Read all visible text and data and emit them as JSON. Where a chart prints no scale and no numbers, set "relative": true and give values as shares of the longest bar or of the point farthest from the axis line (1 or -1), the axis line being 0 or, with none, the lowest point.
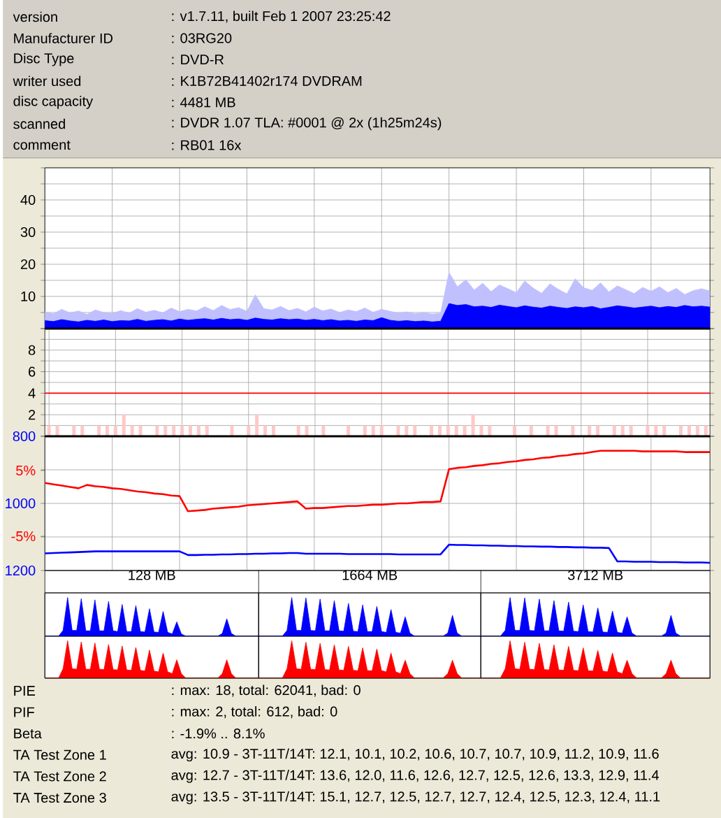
{
  "chart_data": [
    {
      "type": "area",
      "categories": [
        null,
        null,
        null,
        null,
        null,
        null,
        null,
        null,
        null,
        null,
        null,
        null,
        null,
        null,
        null,
        null,
        null,
        null,
        null,
        null,
        null,
        null,
        null,
        null,
        null,
        null,
        null,
        null,
        null,
        null,
        null,
        null,
        null,
        null,
        null,
        null,
        null,
        null,
        null,
        null,
        null,
        null,
        null,
        null,
        null,
        null,
        null,
        null,
        null,
        null,
        null,
        null,
        null,
        null,
        null,
        null,
        null,
        null,
        null,
        null,
        null,
        null,
        null,
        null,
        null,
        null,
        null,
        null,
        null,
        null,
        null,
        null,
        null,
        null,
        null,
        null,
        null,
        null,
        null,
        null
      ],
      "series": [
        {
          "color": "#c0c0ff",
          "values": [
            5.2,
            4.6,
            6.0,
            4.9,
            5.5,
            4.4,
            5.8,
            5.0,
            4.7,
            5.6,
            4.8,
            6.2,
            5.1,
            5.7,
            4.9,
            6.4,
            5.3,
            6.0,
            5.5,
            6.8,
            5.6,
            7.2,
            5.9,
            6.5,
            5.4,
            10.5,
            6.2,
            5.8,
            6.9,
            5.6,
            6.3,
            5.2,
            6.7,
            5.5,
            6.1,
            5.0,
            5.8,
            5.3,
            6.4,
            5.1,
            6.0,
            5.4,
            4.8,
            5.2,
            4.6,
            5.0,
            4.5,
            4.8,
            17.5,
            13.0,
            15.2,
            12.0,
            14.1,
            11.5,
            13.6,
            12.4,
            11.2,
            14.8,
            12.6,
            11.0,
            13.9,
            12.2,
            10.8,
            15.5,
            12.7,
            11.9,
            14.2,
            11.4,
            13.3,
            12.1,
            10.9,
            12.8,
            11.6,
            13.0,
            11.2,
            12.5,
            10.6,
            11.8,
            12.4,
            11.7
          ]
        },
        {
          "color": "#0000ff",
          "values": [
            2.5,
            2.2,
            2.8,
            2.4,
            2.1,
            2.6,
            2.3,
            2.7,
            2.2,
            2.5,
            2.4,
            2.9,
            2.3,
            2.6,
            2.8,
            2.4,
            3.0,
            2.6,
            2.9,
            3.1,
            2.7,
            3.2,
            2.8,
            3.0,
            2.6,
            3.3,
            2.9,
            2.7,
            3.1,
            2.8,
            3.0,
            2.6,
            2.9,
            2.5,
            2.8,
            2.4,
            2.6,
            2.3,
            2.7,
            2.5,
            3.4,
            2.6,
            2.3,
            2.5,
            2.2,
            2.4,
            2.1,
            2.3,
            7.8,
            7.2,
            7.5,
            6.8,
            7.0,
            6.6,
            7.3,
            6.9,
            6.5,
            7.1,
            6.7,
            6.4,
            7.0,
            6.6,
            6.3,
            6.8,
            6.5,
            6.9,
            6.2,
            6.6,
            7.1,
            6.8,
            6.4,
            6.7,
            7.0,
            6.5,
            6.9,
            6.6,
            7.2,
            6.8,
            7.0,
            6.7
          ]
        }
      ],
      "ylim": [
        0,
        50
      ],
      "yticks": [
        {
          "value": 0,
          "label": null
        },
        {
          "value": 5,
          "label": null
        },
        10,
        {
          "value": 15,
          "label": null
        },
        20,
        {
          "value": 25,
          "label": null
        },
        30,
        {
          "value": 35,
          "label": null
        },
        40,
        {
          "value": 45,
          "label": null
        },
        {
          "value": 50,
          "label": null
        }
      ],
      "grid": true,
      "tick_labels": "y",
      "annotations": [
        "version",
        ": v1.7.11, built Feb  1 2007 23:25:42",
        "Manufacturer ID",
        ": 03RG20",
        "Disc Type",
        ": DVD-R",
        "writer used",
        ": K1B72B41402r174 DVDRAM",
        "disc capacity",
        ": 4481 MB",
        "scanned",
        ": DVDR 1.07 TLA: #0001 @ 2x (1h25m24s)",
        "comment",
        ": RB01 16x"
      ]
    },
    {
      "type": "bar",
      "categories": [
        null,
        null,
        null,
        null,
        null,
        null,
        null,
        null,
        null,
        null,
        null,
        null,
        null,
        null,
        null,
        null,
        null,
        null,
        null,
        null,
        null,
        null,
        null,
        null,
        null,
        null,
        null,
        null,
        null,
        null,
        null,
        null,
        null,
        null,
        null,
        null,
        null,
        null,
        null,
        null,
        null,
        null,
        null,
        null,
        null,
        null,
        null,
        null,
        null,
        null,
        null,
        null,
        null,
        null,
        null,
        null,
        null,
        null,
        null,
        null,
        null,
        null,
        null,
        null,
        null,
        null,
        null,
        null,
        null,
        null,
        null,
        null,
        null,
        null,
        null,
        null,
        null,
        null,
        null,
        null
      ],
      "values": [
        1,
        1,
        0,
        1,
        1,
        0,
        1,
        1,
        1,
        2,
        1,
        1,
        0,
        1,
        1,
        1,
        1,
        1,
        1,
        1,
        0,
        0,
        1,
        0,
        1,
        2,
        1,
        1,
        0,
        0,
        1,
        1,
        0,
        1,
        0,
        0,
        1,
        0,
        1,
        1,
        1,
        0,
        1,
        1,
        1,
        0,
        1,
        1,
        1,
        1,
        1,
        2,
        1,
        1,
        0,
        0,
        1,
        0,
        1,
        0,
        1,
        1,
        0,
        1,
        0,
        1,
        1,
        0,
        1,
        1,
        1,
        0,
        1,
        1,
        1,
        0,
        1,
        1,
        1,
        1
      ],
      "color": "#ffc8c8",
      "ylim": [
        0,
        10
      ],
      "yticks": [
        {
          "value": 0,
          "label": null
        },
        {
          "value": 1,
          "label": null
        },
        2,
        {
          "value": 3,
          "label": null
        },
        4,
        {
          "value": 5,
          "label": null
        },
        6,
        {
          "value": 7,
          "label": null
        },
        8,
        {
          "value": 9,
          "label": null
        },
        {
          "value": 10,
          "label": null
        }
      ],
      "grid": true,
      "tick_labels": "y",
      "ref_lines": [
        {
          "axis": "y",
          "value": 4,
          "color": "#ff0000"
        }
      ]
    },
    {
      "type": "line",
      "categories": [
        null,
        null,
        null,
        null,
        null,
        null,
        null,
        null,
        null,
        null,
        null,
        null,
        null,
        null,
        null,
        null,
        null,
        null,
        null,
        null,
        null,
        null,
        null,
        null,
        null,
        null,
        null,
        null,
        null,
        null,
        null,
        null,
        null,
        null,
        null,
        null,
        null,
        null,
        null,
        null,
        null,
        null,
        null,
        null,
        null,
        null,
        null,
        null,
        null,
        null,
        null,
        null,
        null,
        null,
        null,
        null,
        null,
        null,
        null,
        null,
        null,
        null,
        null,
        null,
        null,
        null,
        null,
        null,
        null,
        null,
        null,
        null,
        null,
        null,
        null,
        null,
        null,
        null,
        null,
        null
      ],
      "series": [
        {
          "color": "#0000ff",
          "axis": "y",
          "values": [
            1149,
            1148,
            1147,
            1146,
            1145,
            1144,
            1143,
            1143,
            1143,
            1143,
            1143,
            1143,
            1143,
            1143,
            1143,
            1143,
            1143,
            1154,
            1154,
            1153,
            1153,
            1152,
            1152,
            1151,
            1151,
            1150,
            1150,
            1149,
            1149,
            1148,
            1148,
            1150,
            1150,
            1150,
            1150,
            1150,
            1151,
            1151,
            1151,
            1151,
            1151,
            1151,
            1152,
            1152,
            1152,
            1152,
            1152,
            1152,
            1123,
            1124,
            1124,
            1125,
            1125,
            1126,
            1126,
            1127,
            1127,
            1128,
            1128,
            1129,
            1129,
            1130,
            1130,
            1131,
            1131,
            1132,
            1132,
            1133,
            1173,
            1173,
            1174,
            1174,
            1174,
            1175,
            1175,
            1175,
            1176,
            1176,
            1176,
            1177
          ]
        },
        {
          "color": "#ff0000",
          "axis": "y2",
          "values": [
            3.1,
            2.9,
            2.7,
            2.5,
            2.3,
            2.8,
            2.6,
            2.5,
            2.3,
            2.2,
            2.0,
            1.8,
            1.7,
            1.5,
            1.4,
            1.2,
            1.1,
            -1.2,
            -1.1,
            -1.0,
            -0.8,
            -0.7,
            -0.6,
            -0.5,
            -0.3,
            -0.2,
            -0.1,
            0.0,
            0.1,
            0.2,
            0.3,
            -0.8,
            -0.7,
            -0.7,
            -0.6,
            -0.5,
            -0.4,
            -0.4,
            -0.3,
            -0.2,
            -0.2,
            -0.1,
            0.0,
            0.0,
            0.1,
            0.2,
            0.2,
            0.3,
            5.2,
            5.4,
            5.5,
            5.7,
            5.8,
            6.0,
            6.1,
            6.3,
            6.4,
            6.6,
            6.7,
            6.9,
            7.0,
            7.2,
            7.3,
            7.5,
            7.6,
            7.8,
            8.0,
            8.0,
            8.0,
            8.0,
            8.0,
            7.9,
            7.9,
            7.9,
            7.9,
            7.9,
            7.8,
            7.8,
            7.8,
            7.8
          ]
        }
      ],
      "ylim": [
        1200,
        800
      ],
      "yticks": [
        800,
        {
          "value": 900,
          "label": null
        },
        1000,
        {
          "value": 1100,
          "label": null
        },
        1200
      ],
      "y2lim": [
        -10.2,
        10.2
      ],
      "y2ticks": [
        {
          "value": 5,
          "label": "5%"
        },
        {
          "value": -5,
          "label": "-5%"
        }
      ],
      "grid": true,
      "tick_labels": "y",
      "annotations": [
        "PIE",
        ": max: 18, total: 62041, bad: 0",
        "PIF",
        ": max: 2, total: 612, bad: 0",
        "Beta",
        ": -1.9% .. 8.1%",
        "TA Test Zone 1",
        "avg: 10.9 - 3T-11T/14T: 12.1, 10.1, 10.2, 10.6, 10.7, 10.7, 10.9, 11.2, 10.9, 11.6",
        "TA Test Zone 2",
        "avg: 12.7 - 3T-11T/14T: 13.6, 12.0, 11.6, 12.6, 12.7, 12.5, 12.6, 13.3, 12.9, 11.4",
        "TA Test Zone 3",
        "avg: 13.5 - 3T-11T/14T: 15.1, 12.7, 12.5, 12.7, 12.7, 12.4, 12.5, 12.3, 12.4, 11.1"
      ]
    },
    {
      "type": "area",
      "title": "128 MB",
      "relative": true,
      "tick_labels": false,
      "categories": [
        null,
        null,
        null,
        null,
        null,
        null,
        null,
        null,
        null,
        null,
        null,
        null,
        null,
        null,
        null,
        null,
        null,
        null,
        null,
        null,
        null,
        null,
        null,
        null,
        null,
        null,
        null,
        null,
        null,
        null,
        null,
        null,
        null,
        null,
        null,
        null,
        null,
        null,
        null,
        null,
        null,
        null,
        null,
        null,
        null,
        null,
        null,
        null
      ],
      "series": [
        {
          "color": "#0000ff",
          "values": [
            0,
            0,
            0,
            0,
            0.15,
            1,
            0.15,
            0.15,
            0.97,
            0.14,
            0.14,
            0.94,
            0.14,
            0.14,
            0.9,
            0.14,
            0.12,
            0.82,
            0.12,
            0.12,
            0.79,
            0.12,
            0.11,
            0.71,
            0.11,
            0.1,
            0.64,
            0.1,
            0.06,
            0.37,
            0.06,
            0,
            0,
            0,
            0,
            0,
            0,
            0,
            0,
            0.07,
            0.45,
            0.07,
            0,
            0,
            0,
            0,
            0,
            0
          ]
        }
      ]
    },
    {
      "type": "area",
      "relative": true,
      "tick_labels": false,
      "categories": [
        null,
        null,
        null,
        null,
        null,
        null,
        null,
        null,
        null,
        null,
        null,
        null,
        null,
        null,
        null,
        null,
        null,
        null,
        null,
        null,
        null,
        null,
        null,
        null,
        null,
        null,
        null,
        null,
        null,
        null,
        null,
        null,
        null,
        null,
        null,
        null,
        null,
        null,
        null,
        null,
        null,
        null,
        null,
        null,
        null,
        null,
        null,
        null
      ],
      "series": [
        {
          "color": "#ff0000",
          "values": [
            0,
            0,
            0,
            0,
            0.25,
            1,
            0.25,
            0.24,
            0.97,
            0.24,
            0.24,
            0.94,
            0.24,
            0.23,
            0.9,
            0.23,
            0.22,
            0.86,
            0.22,
            0.21,
            0.82,
            0.21,
            0.19,
            0.75,
            0.19,
            0.17,
            0.67,
            0.17,
            0.12,
            0.49,
            0.12,
            0,
            0,
            0,
            0,
            0,
            0,
            0,
            0,
            0.12,
            0.49,
            0.12,
            0,
            0,
            0,
            0,
            0,
            0
          ]
        }
      ]
    },
    {
      "type": "area",
      "title": "1664 MB",
      "relative": true,
      "tick_labels": false,
      "categories": [
        null,
        null,
        null,
        null,
        null,
        null,
        null,
        null,
        null,
        null,
        null,
        null,
        null,
        null,
        null,
        null,
        null,
        null,
        null,
        null,
        null,
        null,
        null,
        null,
        null,
        null,
        null,
        null,
        null,
        null,
        null,
        null,
        null,
        null,
        null,
        null,
        null,
        null,
        null,
        null,
        null,
        null,
        null,
        null,
        null,
        null,
        null,
        null
      ],
      "series": [
        {
          "color": "#0000ff",
          "values": [
            0,
            0,
            0,
            0,
            0,
            0,
            0.15,
            1,
            0.15,
            0.15,
            0.99,
            0.15,
            0.14,
            0.96,
            0.14,
            0.14,
            0.92,
            0.14,
            0.13,
            0.85,
            0.13,
            0.12,
            0.81,
            0.12,
            0.12,
            0.77,
            0.12,
            0.1,
            0.69,
            0.1,
            0.08,
            0.5,
            0.08,
            0,
            0,
            0,
            0,
            0,
            0,
            0,
            0.08,
            0.54,
            0.08,
            0,
            0,
            0,
            0,
            0
          ]
        }
      ]
    },
    {
      "type": "area",
      "relative": true,
      "tick_labels": false,
      "categories": [
        null,
        null,
        null,
        null,
        null,
        null,
        null,
        null,
        null,
        null,
        null,
        null,
        null,
        null,
        null,
        null,
        null,
        null,
        null,
        null,
        null,
        null,
        null,
        null,
        null,
        null,
        null,
        null,
        null,
        null,
        null,
        null,
        null,
        null,
        null,
        null,
        null,
        null,
        null,
        null,
        null,
        null,
        null,
        null,
        null,
        null,
        null,
        null
      ],
      "series": [
        {
          "color": "#ff0000",
          "values": [
            0,
            0,
            0,
            0,
            0,
            0,
            0.25,
            1,
            0.25,
            0.24,
            0.96,
            0.24,
            0.23,
            0.93,
            0.23,
            0.22,
            0.89,
            0.22,
            0.21,
            0.85,
            0.21,
            0.2,
            0.81,
            0.2,
            0.2,
            0.78,
            0.2,
            0.17,
            0.67,
            0.17,
            0.12,
            0.48,
            0.12,
            0,
            0,
            0,
            0,
            0,
            0,
            0,
            0.12,
            0.48,
            0.12,
            0,
            0,
            0,
            0,
            0
          ]
        }
      ]
    },
    {
      "type": "area",
      "title": "3712 MB",
      "relative": true,
      "tick_labels": false,
      "categories": [
        null,
        null,
        null,
        null,
        null,
        null,
        null,
        null,
        null,
        null,
        null,
        null,
        null,
        null,
        null,
        null,
        null,
        null,
        null,
        null,
        null,
        null,
        null,
        null,
        null,
        null,
        null,
        null,
        null,
        null,
        null,
        null,
        null,
        null,
        null,
        null,
        null,
        null,
        null,
        null,
        null,
        null,
        null,
        null,
        null,
        null,
        null,
        null
      ],
      "series": [
        {
          "color": "#0000ff",
          "values": [
            0,
            0,
            0,
            0,
            0,
            0.15,
            1,
            0.15,
            0.15,
            0.99,
            0.15,
            0.14,
            0.96,
            0.14,
            0.14,
            0.92,
            0.14,
            0.13,
            0.88,
            0.13,
            0.12,
            0.81,
            0.12,
            0.11,
            0.73,
            0.11,
            0.1,
            0.65,
            0.1,
            0.08,
            0.5,
            0.08,
            0,
            0,
            0,
            0,
            0,
            0,
            0.08,
            0.54,
            0.08,
            0,
            0,
            0,
            0,
            0,
            0,
            0
          ]
        }
      ]
    },
    {
      "type": "area",
      "relative": true,
      "tick_labels": false,
      "categories": [
        null,
        null,
        null,
        null,
        null,
        null,
        null,
        null,
        null,
        null,
        null,
        null,
        null,
        null,
        null,
        null,
        null,
        null,
        null,
        null,
        null,
        null,
        null,
        null,
        null,
        null,
        null,
        null,
        null,
        null,
        null,
        null,
        null,
        null,
        null,
        null,
        null,
        null,
        null,
        null,
        null,
        null,
        null,
        null,
        null,
        null,
        null,
        null
      ],
      "series": [
        {
          "color": "#ff0000",
          "values": [
            0,
            0,
            0,
            0,
            0,
            0.25,
            1,
            0.25,
            0.24,
            0.96,
            0.24,
            0.23,
            0.93,
            0.23,
            0.22,
            0.89,
            0.22,
            0.21,
            0.85,
            0.21,
            0.2,
            0.81,
            0.2,
            0.19,
            0.74,
            0.19,
            0.17,
            0.67,
            0.17,
            0.12,
            0.48,
            0.12,
            0,
            0,
            0,
            0,
            0,
            0,
            0.12,
            0.48,
            0.12,
            0,
            0,
            0,
            0,
            0,
            0,
            0
          ]
        }
      ]
    }
  ]
}
